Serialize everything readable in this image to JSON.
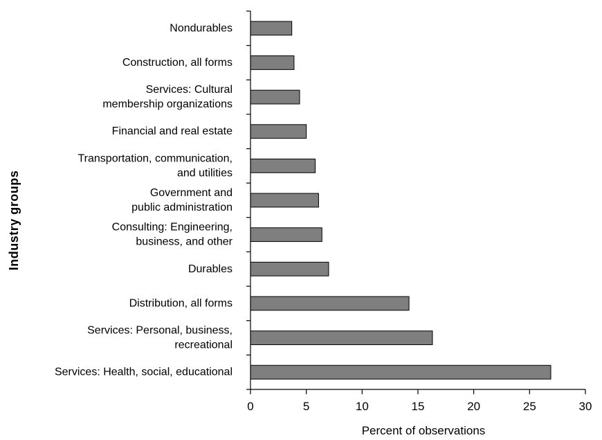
{
  "colors": {
    "bar_fill": "#7f7f7f",
    "bar_stroke": "#000000",
    "axis": "#000000",
    "background": "#ffffff"
  },
  "chart_data": {
    "type": "bar",
    "orientation": "horizontal",
    "title": "",
    "xlabel": "Percent of observations",
    "ylabel": "Industry groups",
    "xlim": [
      0,
      30
    ],
    "xticks": [
      0,
      5,
      10,
      15,
      20,
      25,
      30
    ],
    "grid": false,
    "legend": "none",
    "categories": [
      [
        "Nondurables"
      ],
      [
        "Construction, all forms"
      ],
      [
        "Services: Cultural",
        "membership organizations"
      ],
      [
        "Financial and real estate"
      ],
      [
        "Transportation, communication,",
        "and utilities"
      ],
      [
        "Government and",
        "public administration"
      ],
      [
        "Consulting: Engineering,",
        "business, and other"
      ],
      [
        "Durables"
      ],
      [
        "Distribution, all forms"
      ],
      [
        "Services: Personal, business,",
        "recreational"
      ],
      [
        "Services: Health, social, educational"
      ]
    ],
    "values": [
      3.7,
      3.9,
      4.4,
      5.0,
      5.8,
      6.1,
      6.4,
      7.0,
      14.2,
      16.3,
      26.9
    ]
  }
}
